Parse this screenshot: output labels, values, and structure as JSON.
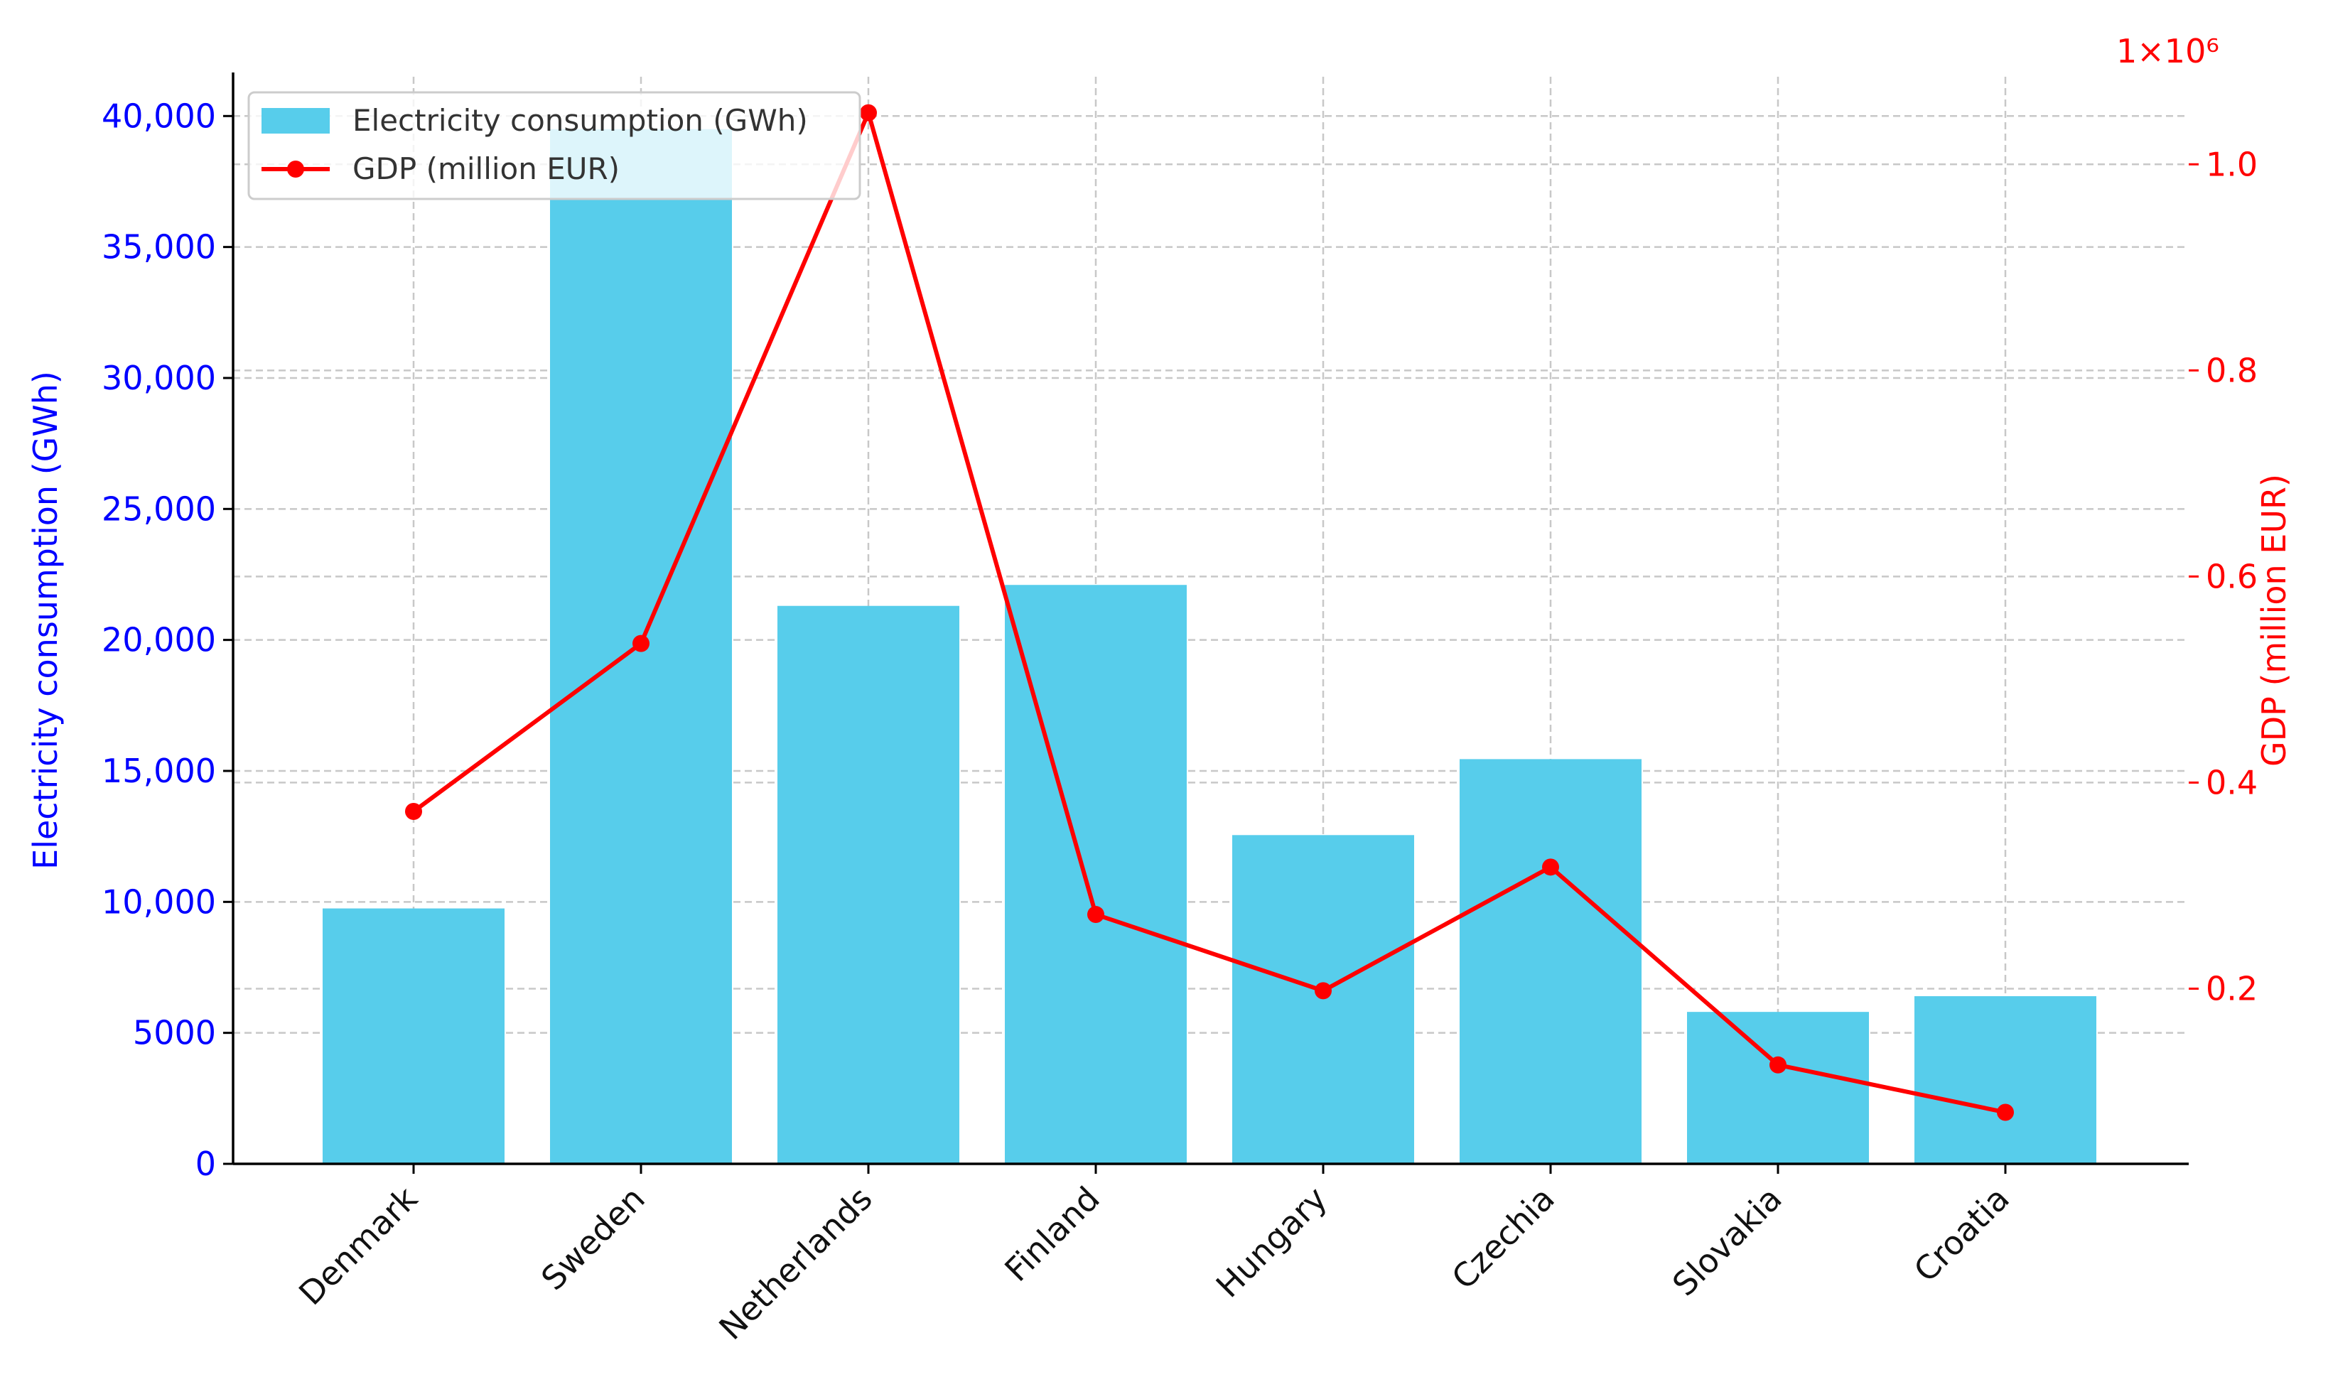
{
  "chart_data": {
    "type": "bar",
    "categories": [
      "Denmark",
      "Sweden",
      "Netherlands",
      "Finland",
      "Hungary",
      "Czechia",
      "Slovakia",
      "Croatia"
    ],
    "series": [
      {
        "name": "Electricity consumption (GWh)",
        "type": "bar",
        "axis": "left",
        "color": "#57cdeb",
        "values": [
          9750,
          39500,
          21300,
          22100,
          12550,
          15450,
          5800,
          6400
        ]
      },
      {
        "name": "GDP (million EUR)",
        "type": "line",
        "axis": "right",
        "color": "#ff0000",
        "values": [
          372000,
          535000,
          1050000,
          272000,
          198000,
          318000,
          126000,
          80000
        ]
      }
    ],
    "ylabel_left": "Electricity consumption (GWh)",
    "ylabel_right": "GDP (million EUR)",
    "ylim_left": [
      0,
      41500
    ],
    "ylim_right": [
      0.03,
      1.085
    ],
    "yticks_left": [
      0,
      5000,
      10000,
      15000,
      20000,
      25000,
      30000,
      35000,
      40000
    ],
    "yticks_left_labels": [
      "0",
      "5000",
      "10,000",
      "15,000",
      "20,000",
      "25,000",
      "30,000",
      "35,000",
      "40,000"
    ],
    "yticks_right": [
      0.2,
      0.4,
      0.6,
      0.8,
      1.0
    ],
    "yticks_right_labels": [
      "0.2",
      "0.4",
      "0.6",
      "0.8",
      "1.0"
    ],
    "right_axis_offset_text": "1×10⁶",
    "left_axis_color": "#0000ff",
    "right_axis_color": "#ff0000",
    "grid": true,
    "legend_position": "top-left"
  }
}
